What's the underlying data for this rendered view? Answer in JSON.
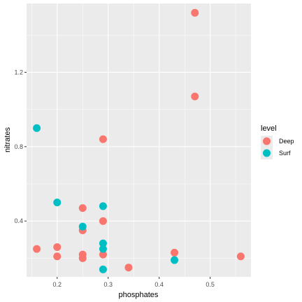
{
  "chart_data": {
    "type": "scatter",
    "xlabel": "phosphates",
    "ylabel": "nitrates",
    "xlim": [
      0.14,
      0.58
    ],
    "ylim": [
      0.1,
      1.57
    ],
    "x_ticks": [
      0.2,
      0.3,
      0.4,
      0.5
    ],
    "x_tick_labels": [
      "0.2",
      "0.3",
      "0.4",
      "0.5"
    ],
    "y_ticks": [
      0.4,
      0.8,
      1.2
    ],
    "y_tick_labels": [
      "0.4",
      "0.8",
      "1.2"
    ],
    "grid": true,
    "legend_title": "level",
    "legend_position": "right",
    "series": [
      {
        "name": "Deep",
        "color": "#F8766D",
        "points": [
          [
            0.47,
            1.52
          ],
          [
            0.47,
            1.07
          ],
          [
            0.29,
            0.84
          ],
          [
            0.25,
            0.47
          ],
          [
            0.29,
            0.4
          ],
          [
            0.25,
            0.35
          ],
          [
            0.16,
            0.25
          ],
          [
            0.2,
            0.26
          ],
          [
            0.2,
            0.21
          ],
          [
            0.25,
            0.22
          ],
          [
            0.25,
            0.2
          ],
          [
            0.29,
            0.22
          ],
          [
            0.34,
            0.15
          ],
          [
            0.43,
            0.23
          ],
          [
            0.56,
            0.21
          ]
        ]
      },
      {
        "name": "Surf",
        "color": "#00BFC4",
        "points": [
          [
            0.16,
            0.9
          ],
          [
            0.2,
            0.5
          ],
          [
            0.29,
            0.48
          ],
          [
            0.25,
            0.37
          ],
          [
            0.29,
            0.28
          ],
          [
            0.29,
            0.25
          ],
          [
            0.29,
            0.14
          ],
          [
            0.43,
            0.19
          ]
        ]
      }
    ]
  }
}
